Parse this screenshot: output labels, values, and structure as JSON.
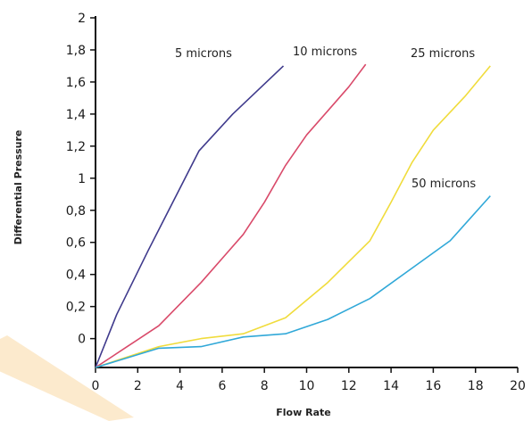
{
  "chart_data": {
    "type": "line",
    "xlabel": "Flow Rate",
    "ylabel": "Differential Pressure",
    "xlim": [
      0,
      20
    ],
    "ylim": [
      -0.18,
      2
    ],
    "x_ticks": [
      "0",
      "2",
      "4",
      "6",
      "8",
      "10",
      "12",
      "14",
      "16",
      "18",
      "20"
    ],
    "y_ticks": [
      "0",
      "0,2",
      "0,4",
      "0,6",
      "0,8",
      "1",
      "1,2",
      "1,4",
      "1,6",
      "1,8",
      "2"
    ],
    "grid": false,
    "series": [
      {
        "name": "5 microns",
        "color": "#3f3a8c",
        "x": [
          0,
          1,
          2.5,
          4.9,
          6.5,
          8.9
        ],
        "y": [
          -0.18,
          0.15,
          0.55,
          1.17,
          1.4,
          1.7
        ]
      },
      {
        "name": "10 microns",
        "color": "#d94a6a",
        "x": [
          0,
          1.5,
          3,
          5,
          7,
          8,
          9,
          10,
          11,
          12,
          12.8
        ],
        "y": [
          -0.18,
          -0.05,
          0.08,
          0.35,
          0.65,
          0.85,
          1.08,
          1.27,
          1.42,
          1.57,
          1.71
        ]
      },
      {
        "name": "25 microns",
        "color": "#f0dc3c",
        "x": [
          0,
          3,
          5,
          7,
          9,
          11,
          13,
          14,
          15,
          16,
          17.5,
          18.7
        ],
        "y": [
          -0.18,
          -0.05,
          0.0,
          0.03,
          0.13,
          0.35,
          0.61,
          0.85,
          1.1,
          1.3,
          1.51,
          1.7
        ]
      },
      {
        "name": "50 microns",
        "color": "#30a8d8",
        "x": [
          0,
          3,
          5,
          7,
          9,
          11,
          13,
          15,
          16.8,
          18.7
        ],
        "y": [
          -0.18,
          -0.06,
          -0.05,
          0.01,
          0.03,
          0.12,
          0.25,
          0.44,
          0.61,
          0.89
        ]
      }
    ]
  }
}
